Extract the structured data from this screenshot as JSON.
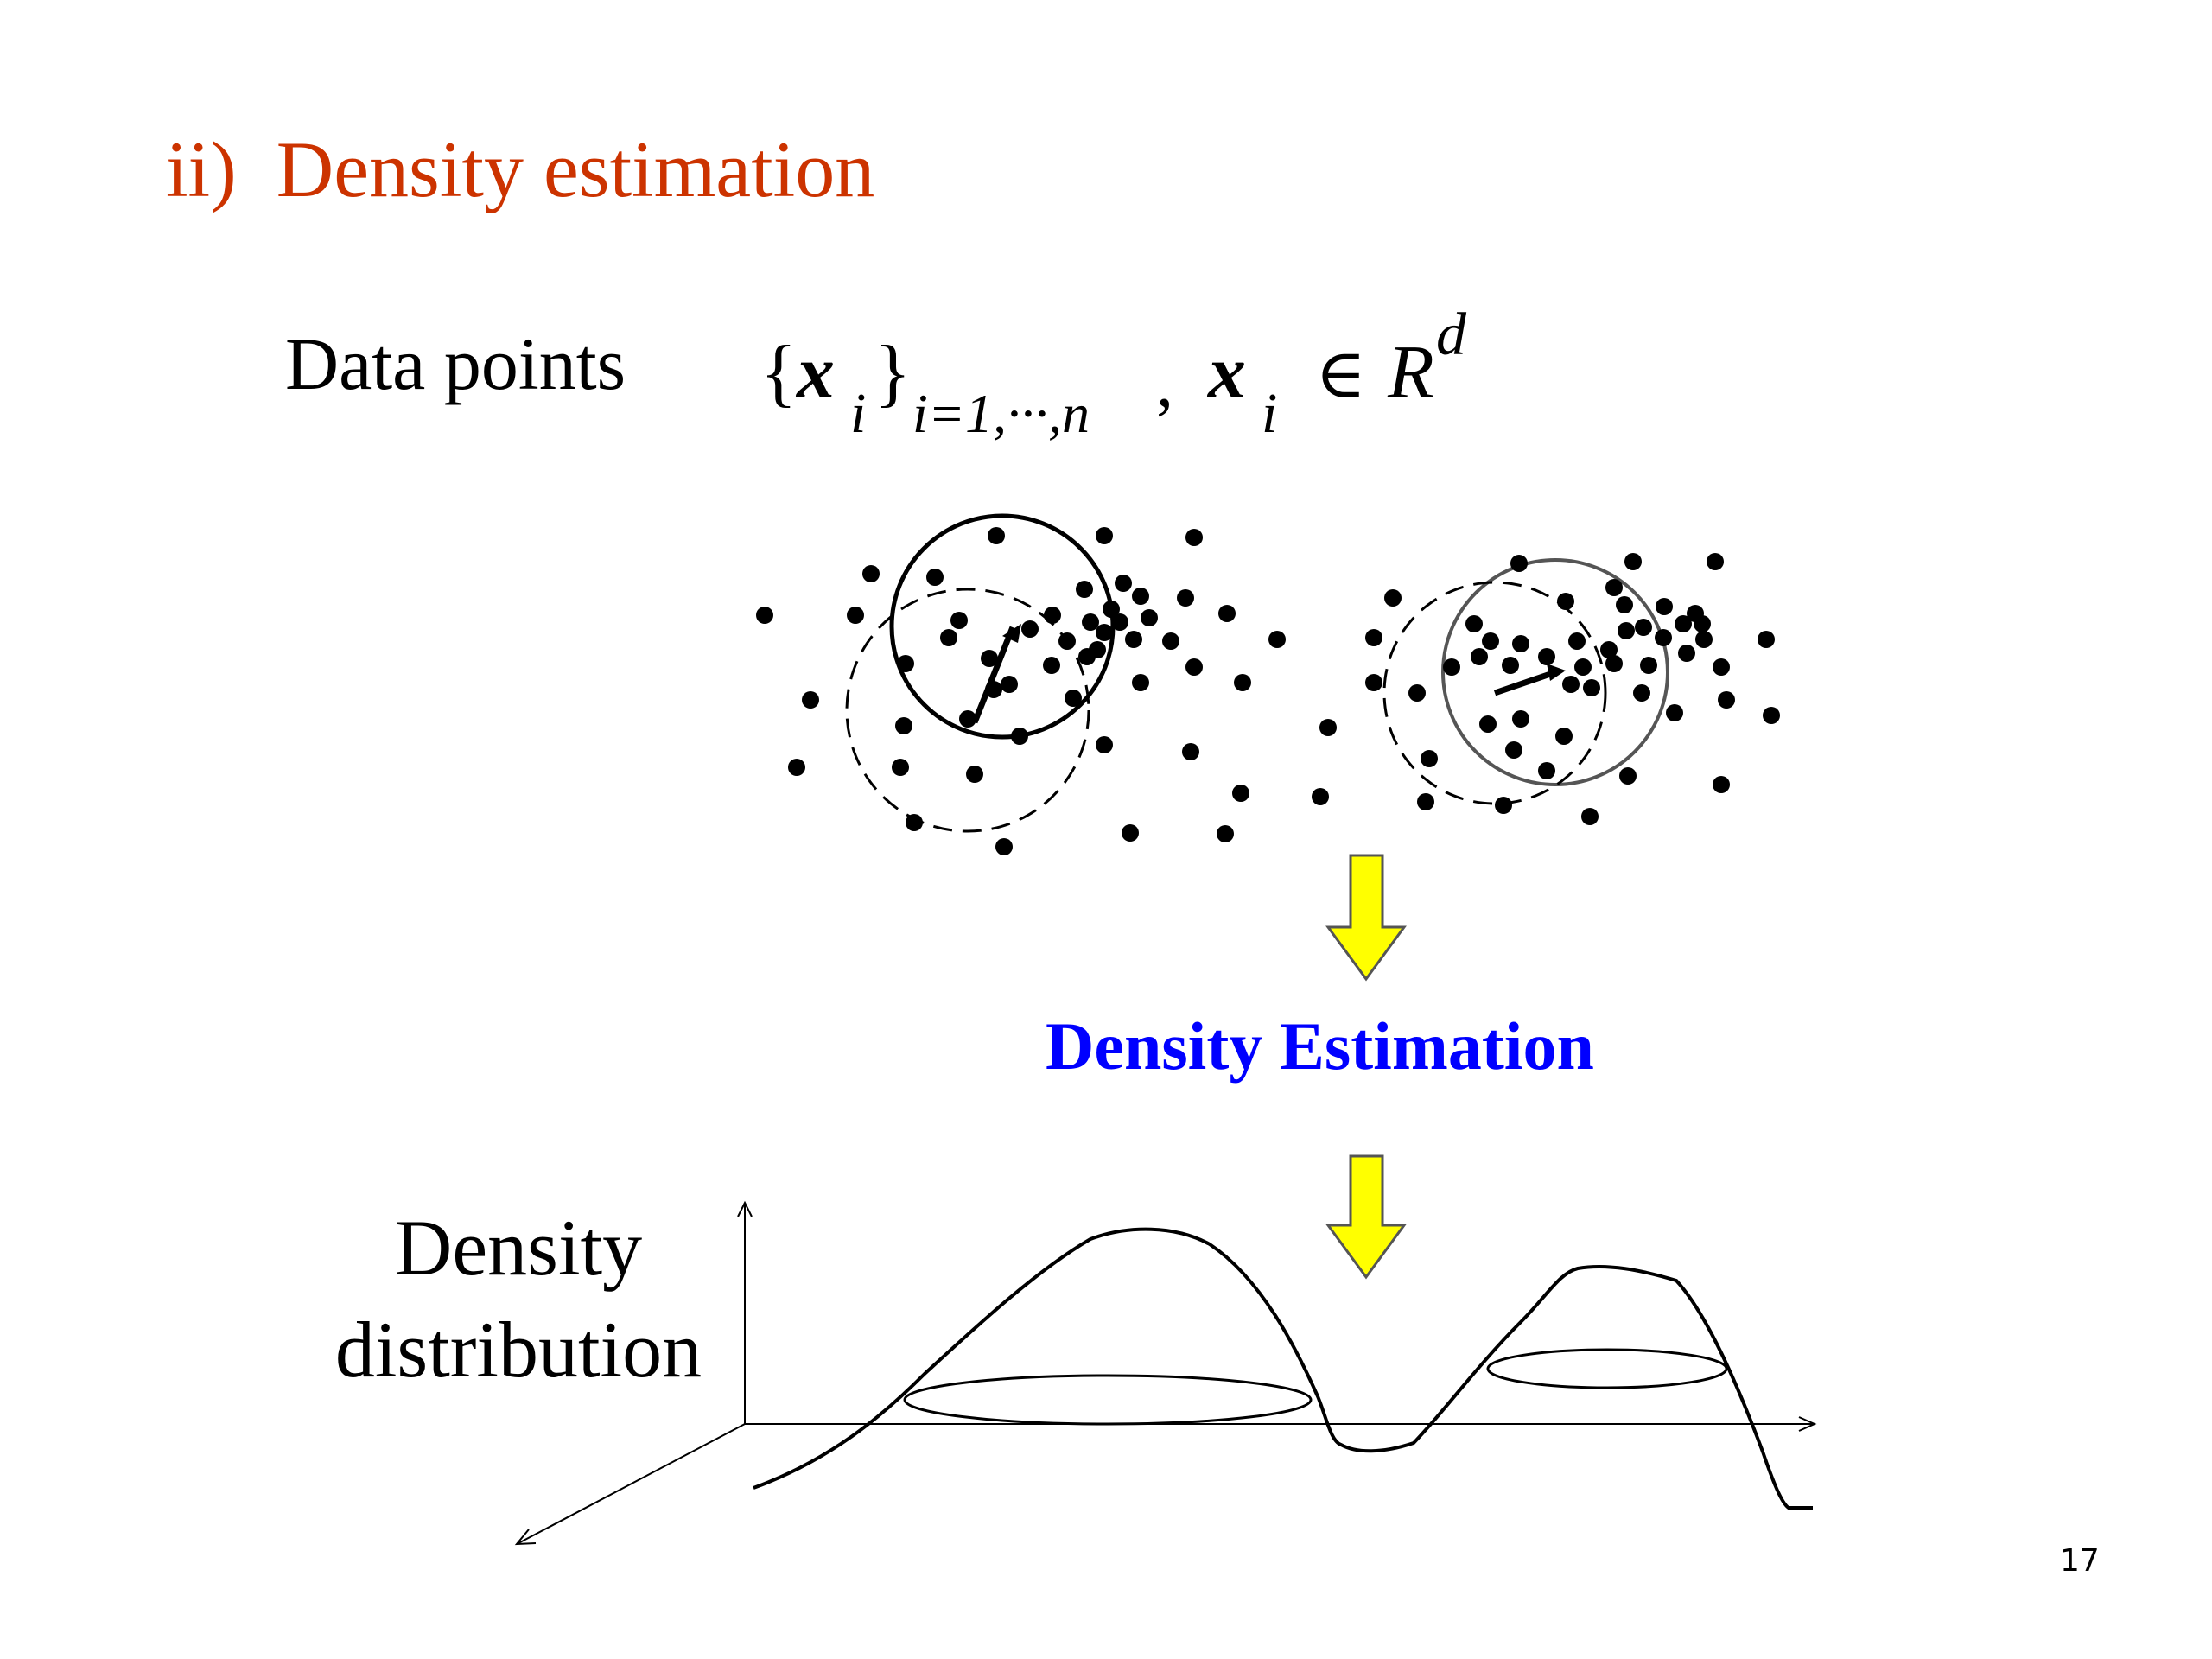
{
  "slide": {
    "title": "ii)  Density estimation",
    "title_color": "#CC3300",
    "page_number": "17"
  },
  "data_points": {
    "label": "Data points",
    "formula": {
      "open_brace": "{",
      "x": "x",
      "sub_i": "i",
      "close_brace": "}",
      "range_subscript": "i=1,···,n",
      "comma": ",",
      "x2": "x",
      "sub_i2": "i",
      "element_of": "∈",
      "space": "R",
      "dim": "d"
    }
  },
  "process": {
    "label": "Density Estimation",
    "label_color": "#0000FF",
    "arrow_color": "#FFFF00"
  },
  "distribution": {
    "label_line1": "Density",
    "label_line2": "distribution"
  }
}
